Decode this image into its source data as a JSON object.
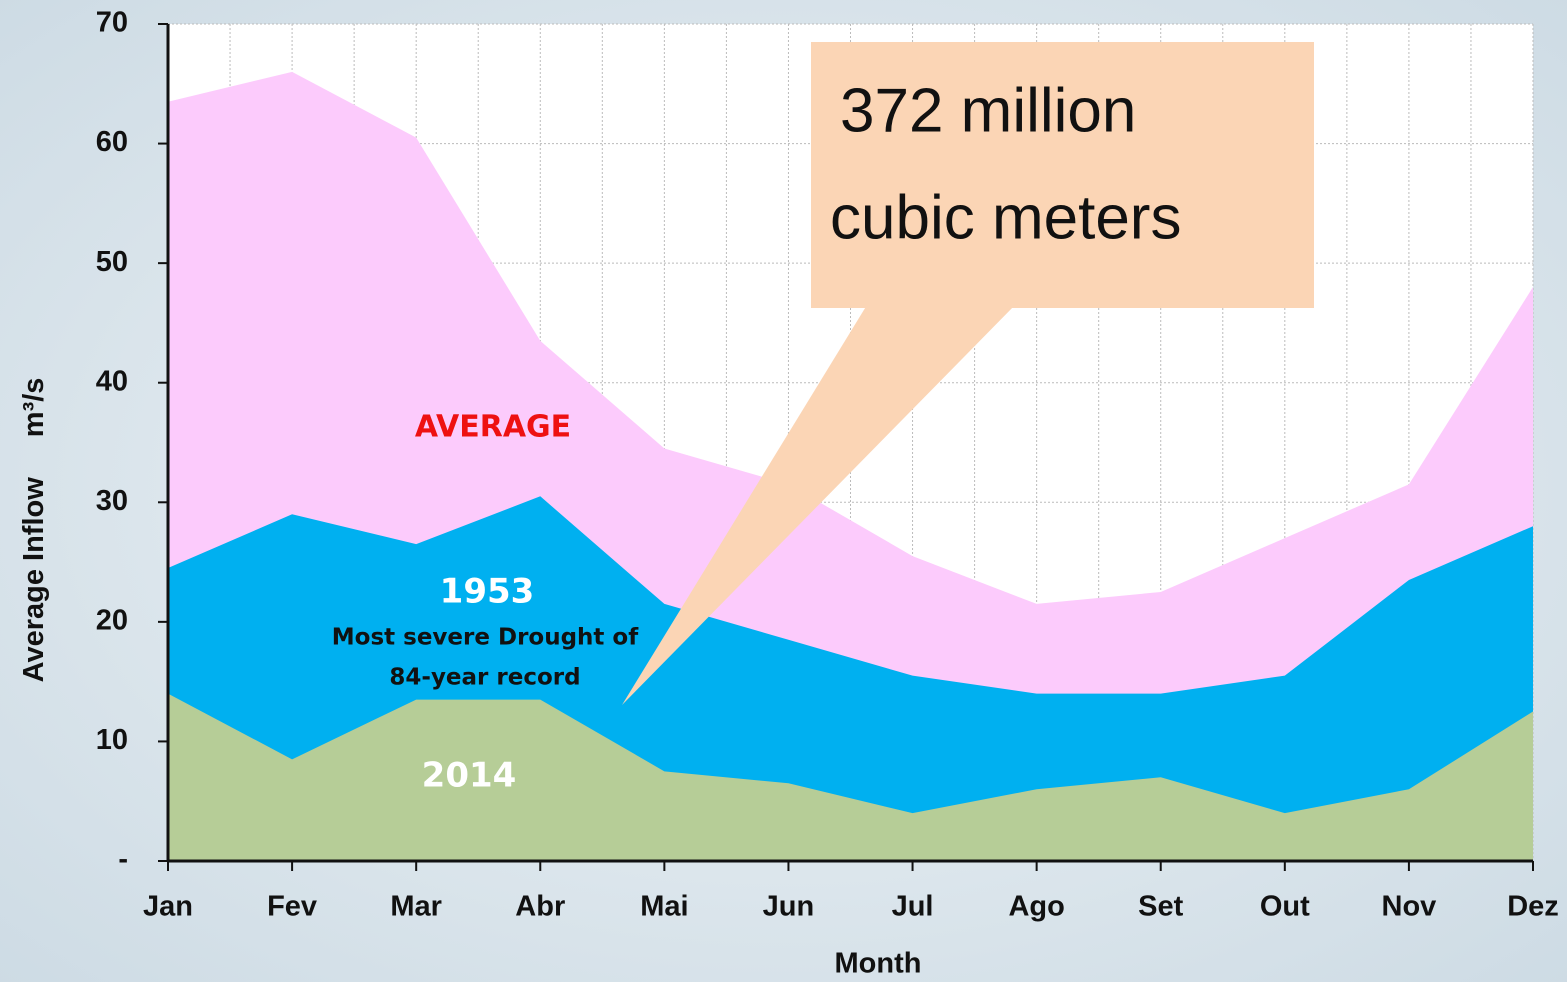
{
  "chart_data": {
    "type": "area",
    "categories": [
      "Jan",
      "Fev",
      "Mar",
      "Abr",
      "Mai",
      "Jun",
      "Jul",
      "Ago",
      "Set",
      "Out",
      "Nov",
      "Dez"
    ],
    "series": [
      {
        "name": "AVERAGE",
        "color": "#fccbfc",
        "label_color": "#ee1111",
        "values": [
          63.5,
          66,
          60.5,
          43.5,
          34.5,
          31.5,
          25.5,
          21.5,
          22.5,
          27,
          31.5,
          48
        ]
      },
      {
        "name": "1953",
        "color": "#00b0f0",
        "label_color": "#ffffff",
        "values": [
          24.5,
          29,
          26.5,
          30.5,
          21.5,
          18.5,
          15.5,
          14,
          14,
          15.5,
          23.5,
          28
        ]
      },
      {
        "name": "2014",
        "color": "#b6cd97",
        "label_color": "#ffffff",
        "values": [
          14,
          8.5,
          13.5,
          13.5,
          7.5,
          6.5,
          4,
          6,
          7,
          4,
          6,
          12.5
        ]
      }
    ],
    "ylim": [
      0,
      70
    ],
    "yticks": [
      {
        "value": 0,
        "label": "-"
      },
      10,
      20,
      30,
      40,
      50,
      60,
      70
    ],
    "ylabel": "Average Inflow",
    "yunit": "m³/s",
    "xlabel": "Month",
    "grid": true,
    "annotations": [
      "Most severe Drought of",
      "84-year record"
    ],
    "callout": [
      "372 million",
      "cubic meters"
    ]
  }
}
